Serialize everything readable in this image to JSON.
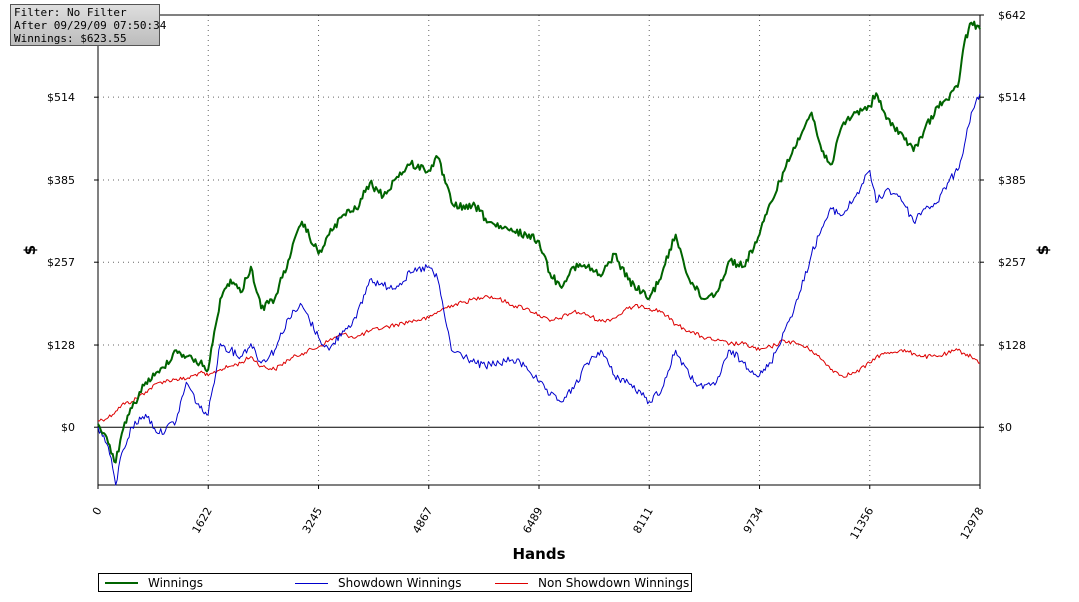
{
  "info_box": {
    "filter": "Filter: No Filter",
    "after": "After 09/29/09 07:50:34",
    "winnings": "Winnings: $623.55"
  },
  "legend": [
    {
      "label": "Winnings",
      "color": "#006400"
    },
    {
      "label": "Showdown Winnings",
      "color": "#0000cc"
    },
    {
      "label": "Non Showdown Winnings",
      "color": "#dd0000"
    }
  ],
  "chart_data": {
    "type": "line",
    "xlabel": "Hands",
    "ylabel": "$",
    "xlim": [
      0,
      12978
    ],
    "ylim": [
      -90,
      642
    ],
    "x_ticks": [
      0,
      1622,
      3245,
      4867,
      6489,
      8111,
      9734,
      11356,
      12978
    ],
    "y_ticks": [
      {
        "value": 0,
        "label": "$0"
      },
      {
        "value": 128,
        "label": "$128"
      },
      {
        "value": 257,
        "label": "$257"
      },
      {
        "value": 385,
        "label": "$385"
      },
      {
        "value": 514,
        "label": "$514"
      },
      {
        "value": 642,
        "label": "$642"
      }
    ],
    "grid": true,
    "legend_position": "bottom",
    "series": [
      {
        "name": "Winnings",
        "color": "#006400",
        "x": [
          0,
          150,
          260,
          350,
          500,
          700,
          900,
          1150,
          1300,
          1500,
          1622,
          1800,
          1950,
          2100,
          2250,
          2400,
          2600,
          2800,
          3000,
          3245,
          3400,
          3600,
          3800,
          4000,
          4200,
          4400,
          4600,
          4867,
          5000,
          5200,
          5400,
          5550,
          5700,
          5900,
          6100,
          6300,
          6489,
          6650,
          6800,
          7000,
          7200,
          7400,
          7600,
          7800,
          8000,
          8111,
          8300,
          8500,
          8700,
          8900,
          9100,
          9300,
          9500,
          9734,
          9900,
          10100,
          10300,
          10500,
          10650,
          10800,
          10950,
          11150,
          11356,
          11450,
          11600,
          11800,
          12000,
          12150,
          12350,
          12500,
          12650,
          12750,
          12850,
          12978
        ],
        "values": [
          5,
          -25,
          -55,
          -10,
          30,
          70,
          85,
          120,
          110,
          100,
          90,
          200,
          230,
          210,
          250,
          185,
          200,
          260,
          320,
          270,
          300,
          330,
          340,
          380,
          360,
          390,
          410,
          400,
          420,
          350,
          340,
          345,
          325,
          310,
          305,
          300,
          290,
          240,
          220,
          250,
          250,
          235,
          270,
          230,
          210,
          200,
          240,
          300,
          230,
          200,
          210,
          260,
          250,
          300,
          350,
          400,
          450,
          490,
          430,
          410,
          470,
          490,
          500,
          520,
          480,
          460,
          430,
          460,
          500,
          510,
          530,
          600,
          630,
          620
        ]
      },
      {
        "name": "Showdown Winnings",
        "color": "#0000cc",
        "x": [
          0,
          150,
          260,
          350,
          500,
          700,
          900,
          1150,
          1300,
          1500,
          1622,
          1800,
          1950,
          2100,
          2250,
          2400,
          2600,
          2800,
          3000,
          3245,
          3400,
          3600,
          3800,
          4000,
          4200,
          4400,
          4600,
          4867,
          5000,
          5200,
          5400,
          5550,
          5700,
          5900,
          6100,
          6300,
          6489,
          6650,
          6800,
          7000,
          7200,
          7400,
          7600,
          7800,
          8000,
          8111,
          8300,
          8500,
          8700,
          8900,
          9100,
          9300,
          9500,
          9734,
          9900,
          10100,
          10300,
          10500,
          10650,
          10800,
          10950,
          11150,
          11356,
          11450,
          11600,
          11800,
          12000,
          12150,
          12350,
          12500,
          12650,
          12750,
          12850,
          12978
        ],
        "values": [
          0,
          -30,
          -90,
          -40,
          0,
          20,
          -10,
          10,
          70,
          30,
          20,
          130,
          120,
          110,
          130,
          100,
          120,
          170,
          190,
          140,
          120,
          150,
          170,
          230,
          220,
          220,
          240,
          250,
          230,
          120,
          110,
          100,
          95,
          100,
          105,
          95,
          70,
          50,
          40,
          60,
          100,
          120,
          80,
          70,
          50,
          40,
          60,
          120,
          80,
          60,
          70,
          120,
          100,
          80,
          100,
          150,
          200,
          270,
          310,
          340,
          330,
          360,
          400,
          350,
          370,
          360,
          320,
          340,
          350,
          380,
          400,
          440,
          490,
          520
        ]
      },
      {
        "name": "Non Showdown Winnings",
        "color": "#dd0000",
        "x": [
          0,
          150,
          260,
          350,
          500,
          700,
          900,
          1150,
          1300,
          1500,
          1622,
          1800,
          1950,
          2100,
          2250,
          2400,
          2600,
          2800,
          3000,
          3245,
          3400,
          3600,
          3800,
          4000,
          4200,
          4400,
          4600,
          4867,
          5000,
          5200,
          5400,
          5550,
          5700,
          5900,
          6100,
          6300,
          6489,
          6650,
          6800,
          7000,
          7200,
          7400,
          7600,
          7800,
          8000,
          8111,
          8300,
          8500,
          8700,
          8900,
          9100,
          9300,
          9500,
          9734,
          9900,
          10100,
          10300,
          10500,
          10650,
          10800,
          10950,
          11150,
          11356,
          11450,
          11600,
          11800,
          12000,
          12150,
          12350,
          12500,
          12650,
          12750,
          12850,
          12978
        ],
        "values": [
          10,
          15,
          25,
          35,
          40,
          55,
          70,
          75,
          75,
          85,
          80,
          90,
          95,
          100,
          110,
          95,
          90,
          105,
          115,
          125,
          135,
          145,
          140,
          150,
          155,
          160,
          165,
          170,
          180,
          190,
          195,
          200,
          205,
          200,
          190,
          185,
          175,
          165,
          170,
          180,
          175,
          165,
          170,
          185,
          190,
          185,
          180,
          160,
          150,
          140,
          135,
          130,
          130,
          120,
          125,
          135,
          130,
          120,
          105,
          90,
          80,
          85,
          100,
          110,
          115,
          120,
          115,
          110,
          110,
          115,
          120,
          115,
          110,
          100
        ]
      }
    ]
  }
}
